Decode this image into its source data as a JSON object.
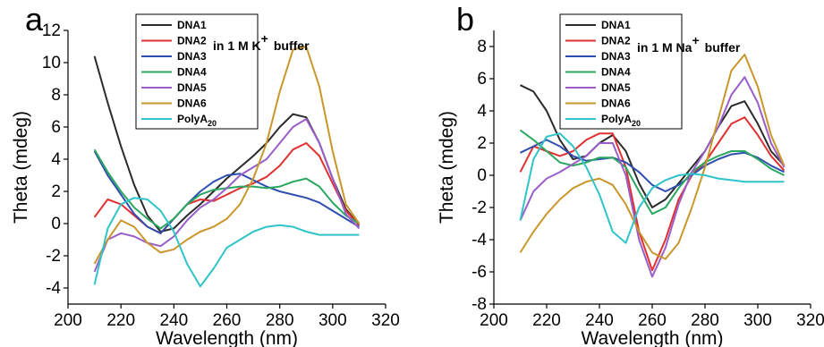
{
  "colors": {
    "DNA1": "#2b2b2b",
    "DNA2": "#e03030",
    "DNA3": "#2f4fb0",
    "DNA4": "#2aa860",
    "DNA5": "#9a5ec8",
    "DNA6": "#c9962a",
    "PolyA20": "#2ec4c8"
  },
  "chart_data": [
    {
      "type": "line",
      "panel": "a",
      "annotation": "in 1 M K",
      "annotation_sup": "+",
      "annotation_tail": "buffer",
      "xlabel": "Wavelength (nm)",
      "ylabel": "Theta (mdeg)",
      "xlim": [
        200,
        320
      ],
      "ylim": [
        -5,
        12
      ],
      "xticks": [
        200,
        220,
        240,
        260,
        280,
        300,
        320
      ],
      "yticks": [
        -4,
        -2,
        0,
        2,
        4,
        6,
        8,
        10,
        12
      ],
      "grid": false,
      "legend": "top-left",
      "x": [
        210,
        215,
        220,
        225,
        230,
        235,
        240,
        245,
        250,
        255,
        260,
        265,
        270,
        275,
        280,
        285,
        290,
        295,
        300,
        305,
        310
      ],
      "series": [
        {
          "name": "DNA1",
          "key": "DNA1",
          "legend_label": "DNA1",
          "legend_sub": "",
          "values": [
            10.4,
            7.5,
            4.8,
            2.4,
            0.5,
            -0.5,
            -0.3,
            0.5,
            1.2,
            2.0,
            2.8,
            3.5,
            4.2,
            5.0,
            6.0,
            6.8,
            6.6,
            5.0,
            2.8,
            0.9,
            -0.1
          ]
        },
        {
          "name": "DNA2",
          "key": "DNA2",
          "legend_label": "DNA2",
          "legend_sub": "",
          "values": [
            0.4,
            1.5,
            1.2,
            0.5,
            -0.2,
            -0.6,
            0.3,
            1.2,
            1.5,
            1.4,
            1.8,
            2.2,
            2.5,
            2.9,
            3.6,
            4.6,
            5.0,
            4.2,
            2.5,
            0.8,
            -0.1
          ]
        },
        {
          "name": "DNA3",
          "key": "DNA3",
          "legend_label": "DNA3",
          "legend_sub": "",
          "values": [
            4.5,
            3.0,
            1.8,
            0.6,
            -0.2,
            -0.6,
            0.3,
            1.2,
            2.0,
            2.6,
            3.0,
            3.1,
            2.7,
            2.3,
            2.0,
            1.8,
            1.6,
            1.3,
            0.8,
            0.3,
            -0.2
          ]
        },
        {
          "name": "DNA4",
          "key": "DNA4",
          "legend_label": "DNA4",
          "legend_sub": "",
          "values": [
            4.6,
            3.2,
            2.0,
            1.0,
            0.3,
            -0.3,
            0.3,
            1.2,
            1.8,
            2.1,
            2.2,
            2.3,
            2.3,
            2.2,
            2.3,
            2.6,
            2.8,
            2.3,
            1.3,
            0.5,
            0.0
          ]
        },
        {
          "name": "DNA5",
          "key": "DNA5",
          "legend_label": "DNA5",
          "legend_sub": "",
          "values": [
            -3.0,
            -1.0,
            -0.6,
            -0.8,
            -1.2,
            -1.4,
            -0.8,
            0.2,
            1.0,
            1.5,
            2.2,
            3.0,
            3.5,
            4.0,
            5.0,
            6.0,
            6.5,
            5.0,
            2.8,
            0.6,
            -0.3
          ]
        },
        {
          "name": "DNA6",
          "key": "DNA6",
          "legend_label": "DNA6",
          "legend_sub": "",
          "values": [
            -2.5,
            -1.0,
            0.2,
            -0.2,
            -1.2,
            -1.8,
            -1.6,
            -1.0,
            -0.5,
            -0.2,
            0.3,
            1.2,
            2.8,
            5.0,
            8.2,
            10.8,
            11.0,
            8.5,
            4.5,
            1.2,
            0.0
          ]
        },
        {
          "name": "PolyA20",
          "key": "PolyA20",
          "legend_label": "PolyA",
          "legend_sub": "20",
          "values": [
            -3.8,
            -0.3,
            1.2,
            1.6,
            1.5,
            0.8,
            -0.5,
            -2.5,
            -3.9,
            -2.8,
            -1.5,
            -1.0,
            -0.5,
            -0.2,
            -0.1,
            -0.2,
            -0.5,
            -0.7,
            -0.7,
            -0.7,
            -0.7
          ]
        }
      ]
    },
    {
      "type": "line",
      "panel": "b",
      "annotation": "in 1 M Na",
      "annotation_sup": "+",
      "annotation_tail": "buffer",
      "xlabel": "Wavelength (nm)",
      "ylabel": "Theta (mdeg)",
      "xlim": [
        200,
        320
      ],
      "ylim": [
        -8,
        9
      ],
      "xticks": [
        200,
        220,
        240,
        260,
        280,
        300,
        320
      ],
      "yticks": [
        -8,
        -6,
        -4,
        -2,
        0,
        2,
        4,
        6,
        8
      ],
      "grid": false,
      "legend": "top-left",
      "x": [
        210,
        215,
        220,
        225,
        230,
        235,
        240,
        245,
        250,
        255,
        260,
        265,
        270,
        275,
        280,
        285,
        290,
        295,
        300,
        305,
        310
      ],
      "series": [
        {
          "name": "DNA1",
          "key": "DNA1",
          "legend_label": "DNA1",
          "legend_sub": "",
          "values": [
            5.6,
            5.2,
            4.0,
            2.2,
            1.0,
            1.2,
            2.0,
            2.5,
            1.5,
            -0.5,
            -2.0,
            -1.5,
            -0.5,
            0.5,
            1.5,
            3.0,
            4.3,
            4.6,
            3.2,
            1.5,
            0.6
          ]
        },
        {
          "name": "DNA2",
          "key": "DNA2",
          "legend_label": "DNA2",
          "legend_sub": "",
          "values": [
            0.2,
            1.8,
            1.5,
            1.2,
            1.5,
            2.2,
            2.6,
            2.6,
            0.5,
            -3.5,
            -5.9,
            -4.0,
            -1.5,
            0.0,
            0.8,
            2.0,
            3.2,
            3.6,
            2.5,
            1.2,
            0.3
          ]
        },
        {
          "name": "DNA3",
          "key": "DNA3",
          "legend_label": "DNA3",
          "legend_sub": "",
          "values": [
            1.4,
            1.8,
            2.2,
            1.8,
            1.2,
            0.9,
            1.0,
            1.1,
            0.8,
            0.2,
            -0.6,
            -1.0,
            -0.6,
            0.0,
            0.6,
            1.0,
            1.3,
            1.4,
            1.1,
            0.6,
            0.2
          ]
        },
        {
          "name": "DNA4",
          "key": "DNA4",
          "legend_label": "DNA4",
          "legend_sub": "",
          "values": [
            2.8,
            2.2,
            1.5,
            0.8,
            0.6,
            0.8,
            1.1,
            1.1,
            0.5,
            -1.0,
            -2.4,
            -2.0,
            -0.8,
            0.2,
            0.8,
            1.2,
            1.5,
            1.5,
            1.0,
            0.4,
            0.0
          ]
        },
        {
          "name": "DNA5",
          "key": "DNA5",
          "legend_label": "DNA5",
          "legend_sub": "",
          "values": [
            -2.8,
            -1.0,
            -0.2,
            0.2,
            0.7,
            1.2,
            2.0,
            2.0,
            0.0,
            -4.0,
            -6.3,
            -4.5,
            -1.8,
            0.2,
            1.5,
            3.0,
            5.0,
            6.1,
            4.5,
            2.0,
            0.5
          ]
        },
        {
          "name": "DNA6",
          "key": "DNA6",
          "legend_label": "DNA6",
          "legend_sub": "",
          "values": [
            -4.8,
            -3.5,
            -2.4,
            -1.5,
            -0.8,
            -0.4,
            -0.2,
            -0.6,
            -1.8,
            -3.5,
            -4.8,
            -5.2,
            -4.2,
            -2.0,
            0.5,
            3.5,
            6.5,
            7.5,
            5.5,
            2.5,
            0.6
          ]
        },
        {
          "name": "PolyA20",
          "key": "PolyA20",
          "legend_label": "PolyA",
          "legend_sub": "20",
          "values": [
            -2.8,
            1.0,
            2.4,
            2.6,
            1.8,
            0.5,
            -1.2,
            -3.5,
            -4.2,
            -2.0,
            -0.8,
            -0.3,
            0.0,
            0.1,
            0.0,
            -0.2,
            -0.3,
            -0.4,
            -0.4,
            -0.4,
            -0.4
          ]
        }
      ]
    }
  ]
}
